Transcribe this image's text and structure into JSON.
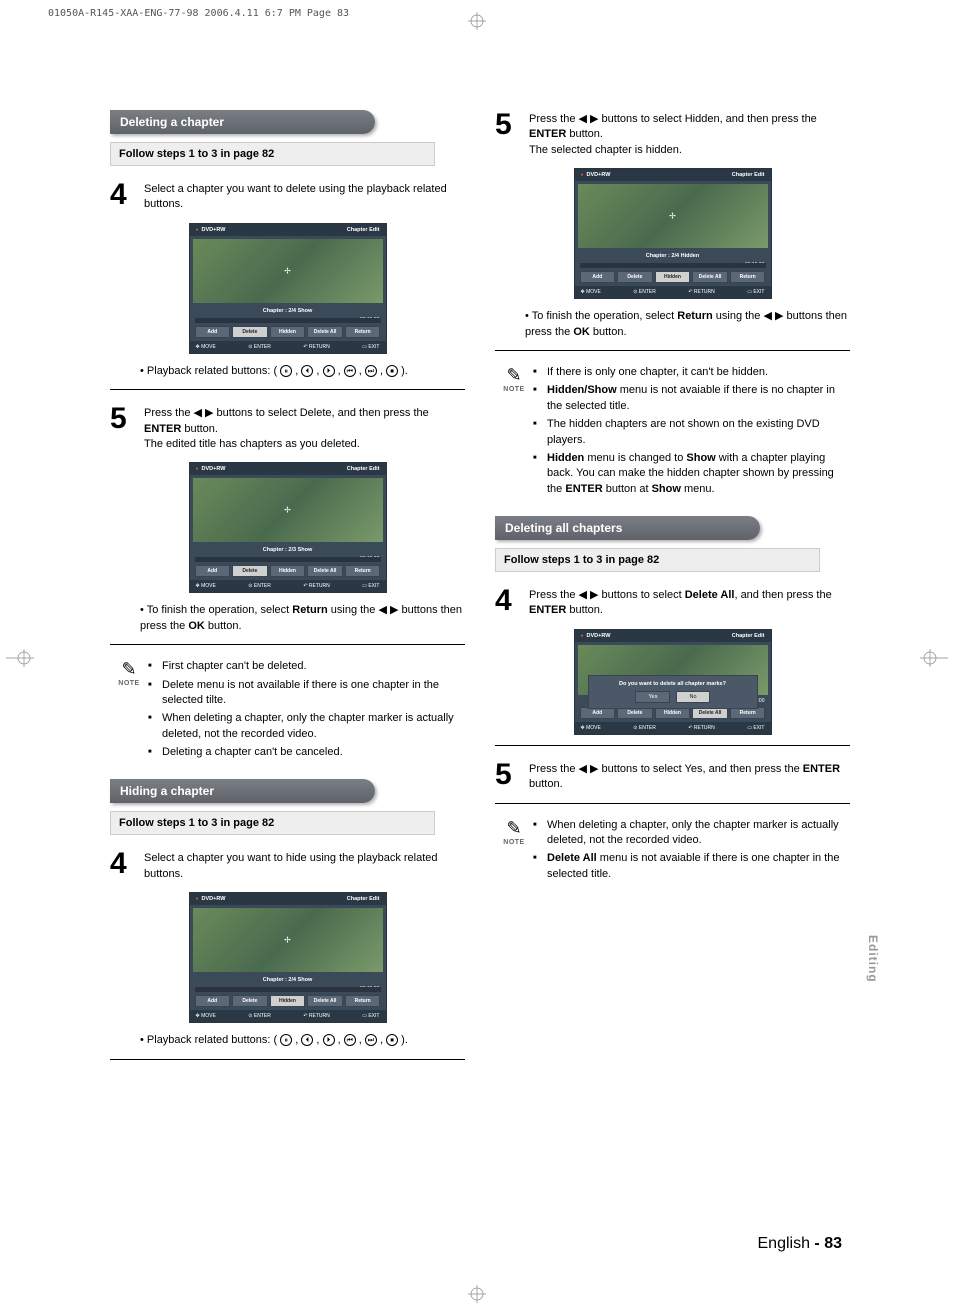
{
  "page_header": "01050A-R145-XAA-ENG-77-98  2006.4.11  6:7 PM  Page 83",
  "side_tab": "Editing",
  "footer": {
    "lang": "English",
    "sep": " - ",
    "num": "83"
  },
  "ui_common": {
    "top_left": "DVD+RW",
    "top_right": "Chapter Edit",
    "timeline_end": "00:15:00",
    "buttons": [
      "Add",
      "Delete",
      "Hidden",
      "Delete All",
      "Return"
    ],
    "nav": [
      "MOVE",
      "ENTER",
      "RETURN",
      "EXIT"
    ],
    "bg_colors": {
      "frame": "#3a4a58",
      "header": "#2a3846",
      "btn": "#5a6878",
      "btn_sel": "#d0d0d0"
    }
  },
  "left": {
    "sec1_title": "Deleting a chapter",
    "follow": "Follow steps 1 to 3 in page 82",
    "step4": "Select a chapter you want to delete using the playback related buttons.",
    "shot1_status": "Chapter : 2/4 Show",
    "playback_line": "• Playback related buttons: (       ,       ,       ,       ,       ,       ).",
    "step5a": "Press the ◀ ▶ buttons to select Delete, and then press the ",
    "step5b": " button.",
    "step5c": "The edited title has chapters as you deleted.",
    "enter": "ENTER",
    "shot2_status": "Chapter : 2/3 Show",
    "finish_a": "• To finish the operation, select ",
    "finish_b": "Return",
    "finish_c": " using the ◀ ▶ buttons then press the ",
    "finish_d": "OK",
    "finish_e": " button.",
    "note1": [
      "First chapter can't be deleted.",
      "Delete menu is not available if there is one chapter in the selected tilte.",
      "When deleting a chapter, only the chapter marker is actually deleted, not the recorded video.",
      "Deleting a chapter can't be canceled."
    ],
    "sec2_title": "Hiding a chapter",
    "follow2": "Follow steps 1 to 3 in page 82",
    "step4b": "Select a chapter you want to hide using the playback related buttons.",
    "shot3_status": "Chapter : 2/4 Show",
    "playback_line2": "• Playback related buttons: (       ,       ,       ,       ,       ,       )."
  },
  "right": {
    "step5a": "Press the ◀ ▶ buttons to select Hidden, and then press the ",
    "step5b": " button.",
    "step5c": "The selected chapter is hidden.",
    "enter": "ENTER",
    "shot1_status": "Chapter : 2/4 Hidden",
    "finish_a": "• To finish the operation, select ",
    "finish_b": "Return",
    "finish_c": " using the ◀ ▶ buttons then press the ",
    "finish_d": "OK",
    "finish_e": " button.",
    "note1": [
      "If there is only one chapter, it can't be hidden.",
      "|Hidden/Show| menu is not avaiable if there is no chapter in the selected title.",
      "The hidden chapters are not shown on the existing DVD players.",
      "|Hidden| menu is changed to |Show| with a chapter playing back. You can make the hidden chapter shown by pressing the |ENTER| button at |Show| menu."
    ],
    "sec_title": "Deleting all chapters",
    "follow": "Follow steps 1 to 3 in page 82",
    "step4a": "Press the ◀ ▶ buttons to select ",
    "step4b": "Delete All",
    "step4c": ", and then press the ",
    "step4d": "ENTER",
    "step4e": " button.",
    "dialog_txt": "Do you want to delete all chapter marks?",
    "dialog_yes": "Yes",
    "dialog_no": "No",
    "dialog_time": "10:00",
    "step5x": "Press the ◀ ▶ buttons to select Yes, and then press the ",
    "step5y": " button.",
    "note2": [
      "When deleting a chapter, only the chapter marker is actually deleted, not the recorded video.",
      "|Delete All| menu is not avaiable if there is one chapter in the selected title."
    ]
  }
}
